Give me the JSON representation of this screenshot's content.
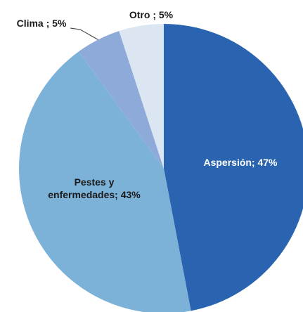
{
  "chart_data": {
    "type": "pie",
    "values": [
      47,
      43,
      5,
      5
    ],
    "value_labels": [
      "Aspersión; 47%",
      "Pestes y enfermedades; 43%",
      "Clima ; 5%",
      "Otro ; 5%"
    ],
    "colors": [
      "#2a64b0",
      "#7db2d8",
      "#8eaad8",
      "#dce6f2"
    ],
    "start_angle": 0,
    "direction": "clockwise"
  }
}
